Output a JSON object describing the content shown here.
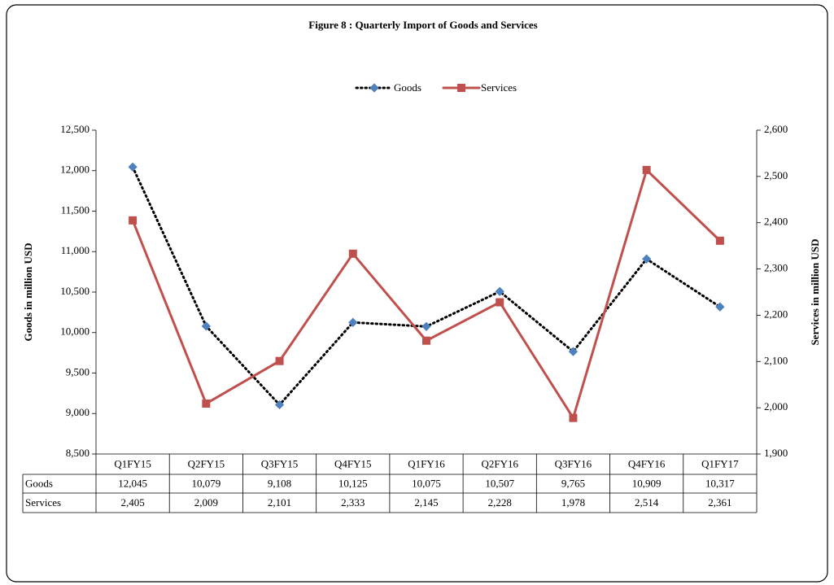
{
  "chart_data": {
    "type": "line",
    "title": "Figure  8 : Quarterly Import of Goods and Services",
    "ylabel": "Goods in million USD",
    "y2label": "Services in million  USD",
    "categories": [
      "Q1FY15",
      "Q2FY15",
      "Q3FY15",
      "Q4FY15",
      "Q1FY16",
      "Q2FY16",
      "Q3FY16",
      "Q4FY16",
      "Q1FY17"
    ],
    "series": [
      {
        "name": "Goods",
        "color": "#4f81bd",
        "line_color": "#000000",
        "values": [
          12045,
          10079,
          9108,
          10125,
          10075,
          10507,
          9765,
          10909,
          10317
        ],
        "value_labels": [
          "12,045",
          "10,079",
          "9,108",
          "10,125",
          "10,075",
          "10,507",
          "9,765",
          "10,909",
          "10,317"
        ]
      },
      {
        "name": "Services",
        "color": "#c0504d",
        "axis": "y2",
        "values": [
          2405,
          2009,
          2101,
          2333,
          2145,
          2228,
          1978,
          2514,
          2361
        ],
        "value_labels": [
          "2,405",
          "2,009",
          "2,101",
          "2,333",
          "2,145",
          "2,228",
          "1,978",
          "2,514",
          "2,361"
        ]
      }
    ],
    "ylim": [
      8500,
      12500
    ],
    "yticks": [
      {
        "value": 8500,
        "label": "8,500"
      },
      {
        "value": 9000,
        "label": "9,000"
      },
      {
        "value": 9500,
        "label": "9,500"
      },
      {
        "value": 10000,
        "label": "10,000"
      },
      {
        "value": 10500,
        "label": "10,500"
      },
      {
        "value": 11000,
        "label": "11,000"
      },
      {
        "value": 11500,
        "label": "11,500"
      },
      {
        "value": 12000,
        "label": "12,000"
      },
      {
        "value": 12500,
        "label": "12,500"
      }
    ],
    "y2lim": [
      1900,
      2600
    ],
    "y2ticks": [
      {
        "value": 1900,
        "label": "1,900"
      },
      {
        "value": 2000,
        "label": "2,000"
      },
      {
        "value": 2100,
        "label": "2,100"
      },
      {
        "value": 2200,
        "label": "2,200"
      },
      {
        "value": 2300,
        "label": "2,300"
      },
      {
        "value": 2400,
        "label": "2,400"
      },
      {
        "value": 2500,
        "label": "2,500"
      },
      {
        "value": 2600,
        "label": "2,600"
      }
    ],
    "legend": "top"
  }
}
